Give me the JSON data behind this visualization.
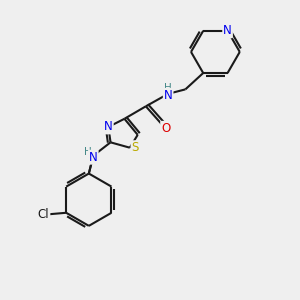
{
  "background_color": "#efefef",
  "bond_color": "#1a1a1a",
  "atom_colors": {
    "N": "#0000ee",
    "O": "#dd0000",
    "S": "#bbaa00",
    "Cl": "#1a1a1a",
    "C": "#1a1a1a",
    "H": "#448888"
  },
  "figsize": [
    3.0,
    3.0
  ],
  "dpi": 100
}
